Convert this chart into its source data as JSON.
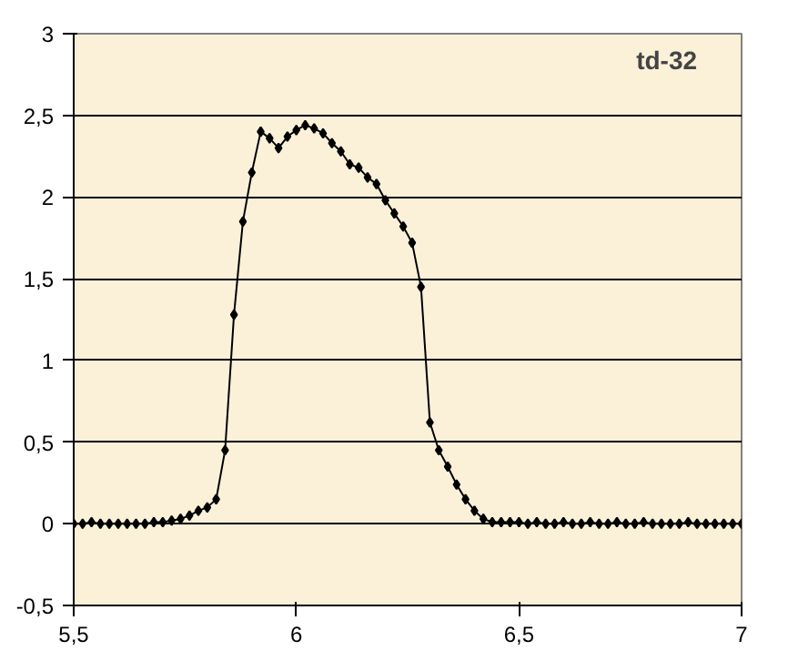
{
  "chart_data": {
    "type": "line",
    "title": "td-32",
    "x": [
      5.5,
      5.52,
      5.54,
      5.56,
      5.58,
      5.6,
      5.62,
      5.64,
      5.66,
      5.68,
      5.7,
      5.72,
      5.74,
      5.76,
      5.78,
      5.8,
      5.82,
      5.84,
      5.86,
      5.88,
      5.9,
      5.92,
      5.94,
      5.96,
      5.98,
      6.0,
      6.02,
      6.04,
      6.06,
      6.08,
      6.1,
      6.12,
      6.14,
      6.16,
      6.18,
      6.2,
      6.22,
      6.24,
      6.26,
      6.28,
      6.3,
      6.32,
      6.34,
      6.36,
      6.38,
      6.4,
      6.42,
      6.44,
      6.46,
      6.48,
      6.5,
      6.52,
      6.54,
      6.56,
      6.58,
      6.6,
      6.62,
      6.64,
      6.66,
      6.68,
      6.7,
      6.72,
      6.74,
      6.76,
      6.78,
      6.8,
      6.82,
      6.84,
      6.86,
      6.88,
      6.9,
      6.92,
      6.94,
      6.96,
      6.98,
      7.0
    ],
    "series": [
      {
        "color": "#000000",
        "values": [
          0.0,
          0.0,
          0.01,
          0.0,
          0.0,
          0.0,
          0.0,
          0.0,
          0.0,
          0.01,
          0.01,
          0.02,
          0.03,
          0.05,
          0.08,
          0.1,
          0.15,
          0.45,
          1.28,
          1.85,
          2.15,
          2.4,
          2.36,
          2.3,
          2.37,
          2.41,
          2.44,
          2.42,
          2.39,
          2.33,
          2.28,
          2.2,
          2.18,
          2.12,
          2.08,
          1.98,
          1.9,
          1.82,
          1.72,
          1.45,
          0.62,
          0.45,
          0.35,
          0.24,
          0.15,
          0.08,
          0.03,
          0.01,
          0.01,
          0.01,
          0.01,
          0.0,
          0.01,
          0.0,
          0.0,
          0.01,
          0.0,
          0.0,
          0.01,
          0.0,
          0.0,
          0.01,
          0.0,
          0.0,
          0.01,
          0.0,
          0.0,
          0.0,
          0.0,
          0.01,
          0.0,
          0.0,
          0.0,
          0.0,
          0.0,
          0.0
        ]
      }
    ],
    "xlim": [
      5.5,
      7
    ],
    "xticks": [
      {
        "value": 5.5,
        "label": "5,5"
      },
      6,
      {
        "value": 6.5,
        "label": "6,5"
      },
      7
    ],
    "ylim": [
      -0.5,
      3
    ],
    "yticks": [
      {
        "value": -0.5,
        "label": "-0,5"
      },
      0,
      {
        "value": 0.5,
        "label": "0,5"
      },
      1,
      {
        "value": 1.5,
        "label": "1,5"
      },
      2,
      {
        "value": 2.5,
        "label": "2,5"
      },
      3
    ],
    "grid": "y",
    "marker": "diamond",
    "line_style": "solid"
  }
}
